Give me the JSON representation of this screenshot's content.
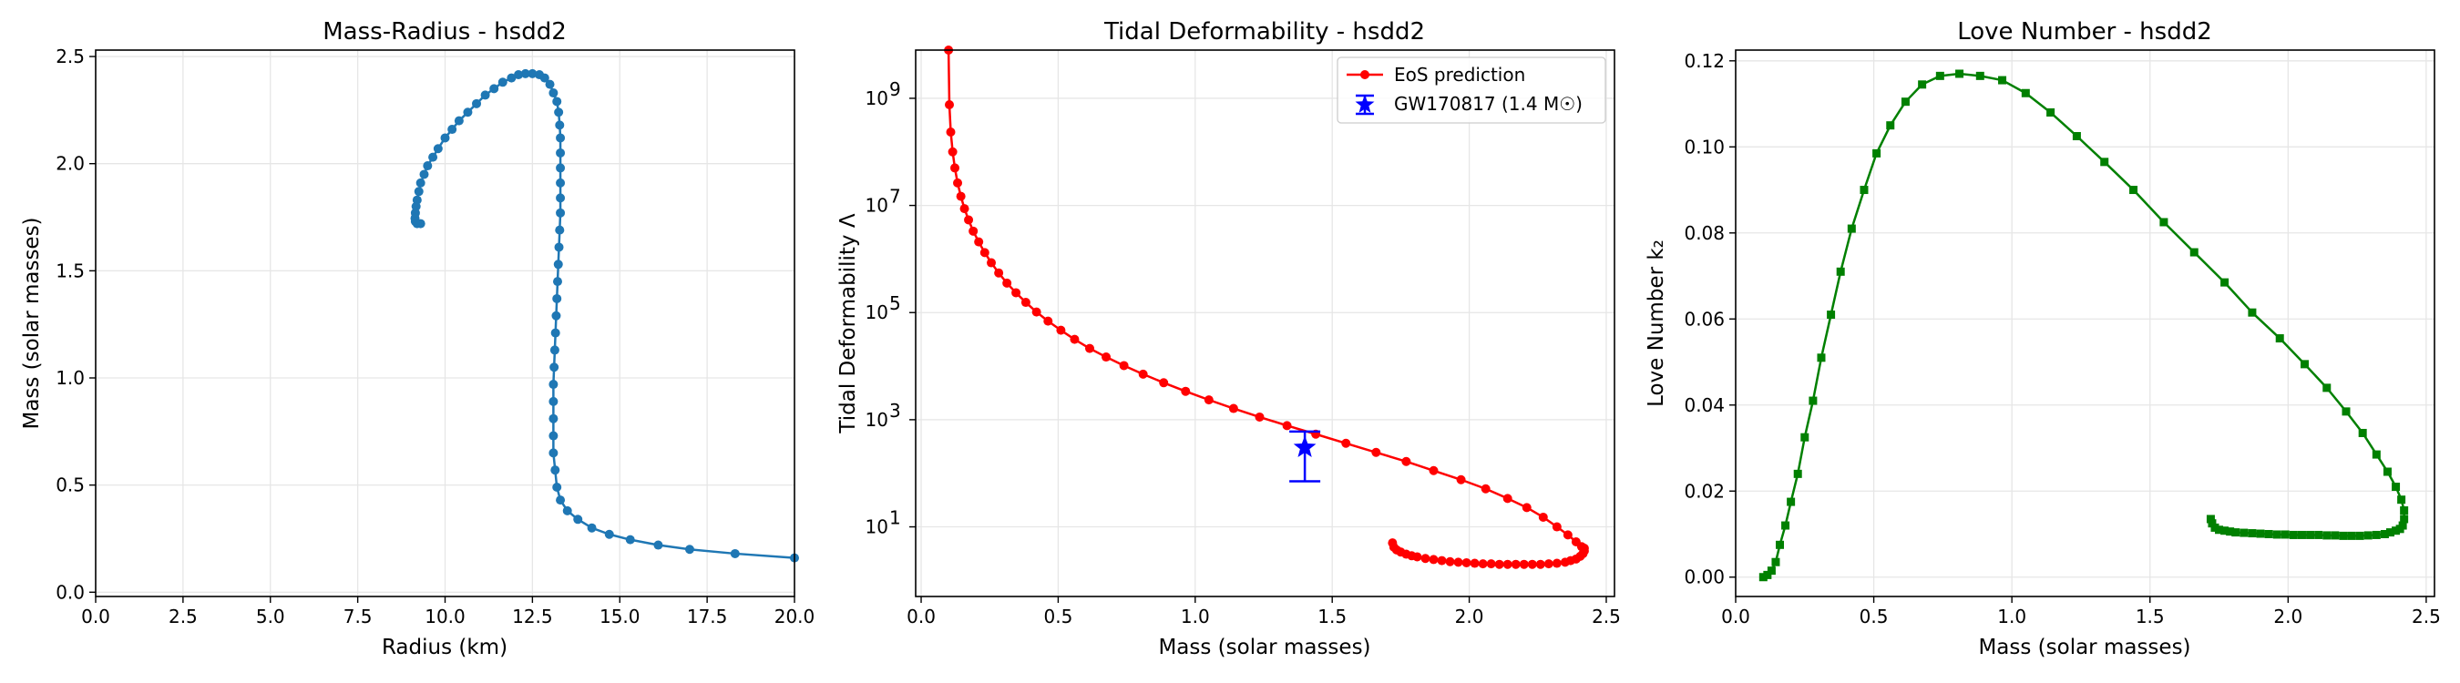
{
  "chart_data": [
    {
      "type": "line",
      "title": "Mass-Radius - hsdd2",
      "xlabel": "Radius (km)",
      "ylabel": "Mass (solar masses)",
      "xlim": [
        0,
        20
      ],
      "ylim": [
        -0.02,
        2.53
      ],
      "xticks": [
        "0.0",
        "2.5",
        "5.0",
        "7.5",
        "10.0",
        "12.5",
        "15.0",
        "17.5",
        "20.0"
      ],
      "yticks": [
        "0.0",
        "0.5",
        "1.0",
        "1.5",
        "2.0",
        "2.5"
      ],
      "grid": true,
      "color": "#1f77b4",
      "marker": "circle",
      "series": [
        {
          "name": "hsdd2",
          "x": [
            20.0,
            18.3,
            17.0,
            16.1,
            15.3,
            14.7,
            14.2,
            13.8,
            13.5,
            13.3,
            13.2,
            13.15,
            13.1,
            13.1,
            13.1,
            13.1,
            13.1,
            13.12,
            13.14,
            13.16,
            13.18,
            13.2,
            13.22,
            13.24,
            13.26,
            13.28,
            13.3,
            13.3,
            13.3,
            13.3,
            13.3,
            13.3,
            13.28,
            13.25,
            13.2,
            13.1,
            13.0,
            12.85,
            12.7,
            12.5,
            12.3,
            12.1,
            11.9,
            11.65,
            11.4,
            11.15,
            10.9,
            10.65,
            10.4,
            10.2,
            10.0,
            9.8,
            9.65,
            9.5,
            9.4,
            9.3,
            9.25,
            9.2,
            9.17,
            9.15,
            9.14,
            9.15,
            9.2,
            9.3
          ],
          "y": [
            0.16,
            0.18,
            0.2,
            0.22,
            0.245,
            0.27,
            0.3,
            0.34,
            0.38,
            0.43,
            0.49,
            0.57,
            0.65,
            0.73,
            0.81,
            0.89,
            0.97,
            1.05,
            1.13,
            1.21,
            1.29,
            1.37,
            1.45,
            1.53,
            1.61,
            1.69,
            1.77,
            1.84,
            1.91,
            1.98,
            2.05,
            2.12,
            2.18,
            2.24,
            2.29,
            2.33,
            2.37,
            2.4,
            2.415,
            2.42,
            2.42,
            2.415,
            2.4,
            2.38,
            2.35,
            2.32,
            2.28,
            2.24,
            2.2,
            2.16,
            2.12,
            2.07,
            2.03,
            1.99,
            1.95,
            1.91,
            1.87,
            1.83,
            1.8,
            1.77,
            1.745,
            1.73,
            1.72,
            1.72
          ]
        }
      ]
    },
    {
      "type": "line",
      "title": "Tidal Deformability - hsdd2",
      "xlabel": "Mass (solar masses)",
      "ylabel": "Tidal Deformability Λ",
      "yscale": "log",
      "xlim": [
        -0.02,
        2.53
      ],
      "ylim_log10": [
        -0.3,
        9.9
      ],
      "xticks": [
        "0.0",
        "0.5",
        "1.0",
        "1.5",
        "2.0",
        "2.5"
      ],
      "yticks": [
        "10",
        "10",
        "10",
        "10",
        "10"
      ],
      "ytick_exponents": [
        "1",
        "3",
        "5",
        "7",
        "9"
      ],
      "grid": true,
      "legend_position": "top-right",
      "series": [
        {
          "name": "EoS prediction",
          "color": "#ff0000",
          "marker": "circle",
          "x": [
            0.1,
            0.103,
            0.108,
            0.115,
            0.123,
            0.133,
            0.145,
            0.158,
            0.173,
            0.19,
            0.21,
            0.232,
            0.256,
            0.283,
            0.313,
            0.346,
            0.382,
            0.421,
            0.463,
            0.51,
            0.56,
            0.615,
            0.675,
            0.74,
            0.81,
            0.885,
            0.965,
            1.05,
            1.14,
            1.235,
            1.335,
            1.44,
            1.55,
            1.66,
            1.77,
            1.87,
            1.97,
            2.06,
            2.14,
            2.21,
            2.27,
            2.32,
            2.36,
            2.39,
            2.41,
            2.42,
            2.42,
            2.415,
            2.405,
            2.39,
            2.37,
            2.35,
            2.32,
            2.29,
            2.26,
            2.23,
            2.2,
            2.17,
            2.14,
            2.11,
            2.08,
            2.05,
            2.02,
            1.99,
            1.96,
            1.93,
            1.9,
            1.87,
            1.84,
            1.81,
            1.79,
            1.77,
            1.75,
            1.735,
            1.725,
            1.72
          ],
          "log10_y": [
            9.9,
            8.88,
            8.37,
            8.0,
            7.7,
            7.42,
            7.17,
            6.94,
            6.73,
            6.52,
            6.32,
            6.12,
            5.93,
            5.74,
            5.55,
            5.37,
            5.19,
            5.01,
            4.84,
            4.67,
            4.5,
            4.33,
            4.17,
            4.01,
            3.85,
            3.69,
            3.53,
            3.37,
            3.21,
            3.05,
            2.89,
            2.73,
            2.56,
            2.39,
            2.22,
            2.05,
            1.88,
            1.71,
            1.53,
            1.36,
            1.18,
            1.0,
            0.85,
            0.72,
            0.63,
            0.6,
            0.55,
            0.5,
            0.45,
            0.4,
            0.37,
            0.34,
            0.32,
            0.31,
            0.3,
            0.3,
            0.3,
            0.3,
            0.3,
            0.3,
            0.31,
            0.31,
            0.32,
            0.33,
            0.34,
            0.35,
            0.37,
            0.39,
            0.41,
            0.44,
            0.46,
            0.49,
            0.53,
            0.57,
            0.62,
            0.7
          ]
        },
        {
          "name": "GW170817 (1.4 M☉)",
          "color": "#0000ff",
          "marker": "star",
          "x": [
            1.4
          ],
          "log10_y": [
            2.48
          ],
          "errorbar_log10": [
            1.85,
            2.78
          ]
        }
      ]
    },
    {
      "type": "line",
      "title": "Love Number - hsdd2",
      "xlabel": "Mass (solar masses)",
      "ylabel": "Love Number k₂",
      "xlim": [
        0.0,
        2.53
      ],
      "ylim": [
        -0.0045,
        0.1225
      ],
      "xticks": [
        "0.0",
        "0.5",
        "1.0",
        "1.5",
        "2.0",
        "2.5"
      ],
      "yticks": [
        "0.00",
        "0.02",
        "0.04",
        "0.06",
        "0.08",
        "0.10",
        "0.12"
      ],
      "grid": true,
      "color": "#008000",
      "marker": "square",
      "series": [
        {
          "name": "hsdd2",
          "x": [
            0.1,
            0.115,
            0.13,
            0.145,
            0.16,
            0.18,
            0.2,
            0.225,
            0.25,
            0.28,
            0.31,
            0.345,
            0.38,
            0.42,
            0.465,
            0.51,
            0.56,
            0.615,
            0.675,
            0.74,
            0.81,
            0.885,
            0.965,
            1.05,
            1.14,
            1.235,
            1.335,
            1.44,
            1.55,
            1.66,
            1.77,
            1.87,
            1.97,
            2.06,
            2.14,
            2.21,
            2.27,
            2.32,
            2.36,
            2.39,
            2.41,
            2.42,
            2.42,
            2.415,
            2.405,
            2.39,
            2.37,
            2.35,
            2.32,
            2.29,
            2.26,
            2.23,
            2.2,
            2.17,
            2.14,
            2.11,
            2.08,
            2.05,
            2.02,
            1.99,
            1.96,
            1.93,
            1.9,
            1.87,
            1.84,
            1.81,
            1.79,
            1.77,
            1.75,
            1.735,
            1.725,
            1.72
          ],
          "y": [
            0.0,
            0.0005,
            0.0015,
            0.0035,
            0.0075,
            0.012,
            0.0175,
            0.024,
            0.0325,
            0.041,
            0.051,
            0.061,
            0.071,
            0.081,
            0.09,
            0.0985,
            0.105,
            0.1105,
            0.1145,
            0.1165,
            0.117,
            0.1165,
            0.1155,
            0.1125,
            0.108,
            0.1025,
            0.0965,
            0.09,
            0.0825,
            0.0755,
            0.0685,
            0.0615,
            0.0555,
            0.0495,
            0.044,
            0.0385,
            0.0335,
            0.0285,
            0.0245,
            0.021,
            0.018,
            0.0155,
            0.0135,
            0.012,
            0.0112,
            0.0108,
            0.0104,
            0.01,
            0.0098,
            0.0097,
            0.0096,
            0.0096,
            0.0096,
            0.0097,
            0.0097,
            0.0098,
            0.0098,
            0.0098,
            0.0098,
            0.0099,
            0.0099,
            0.01,
            0.0101,
            0.0102,
            0.0103,
            0.0104,
            0.0106,
            0.0108,
            0.011,
            0.0115,
            0.0125,
            0.0135
          ]
        }
      ]
    }
  ]
}
